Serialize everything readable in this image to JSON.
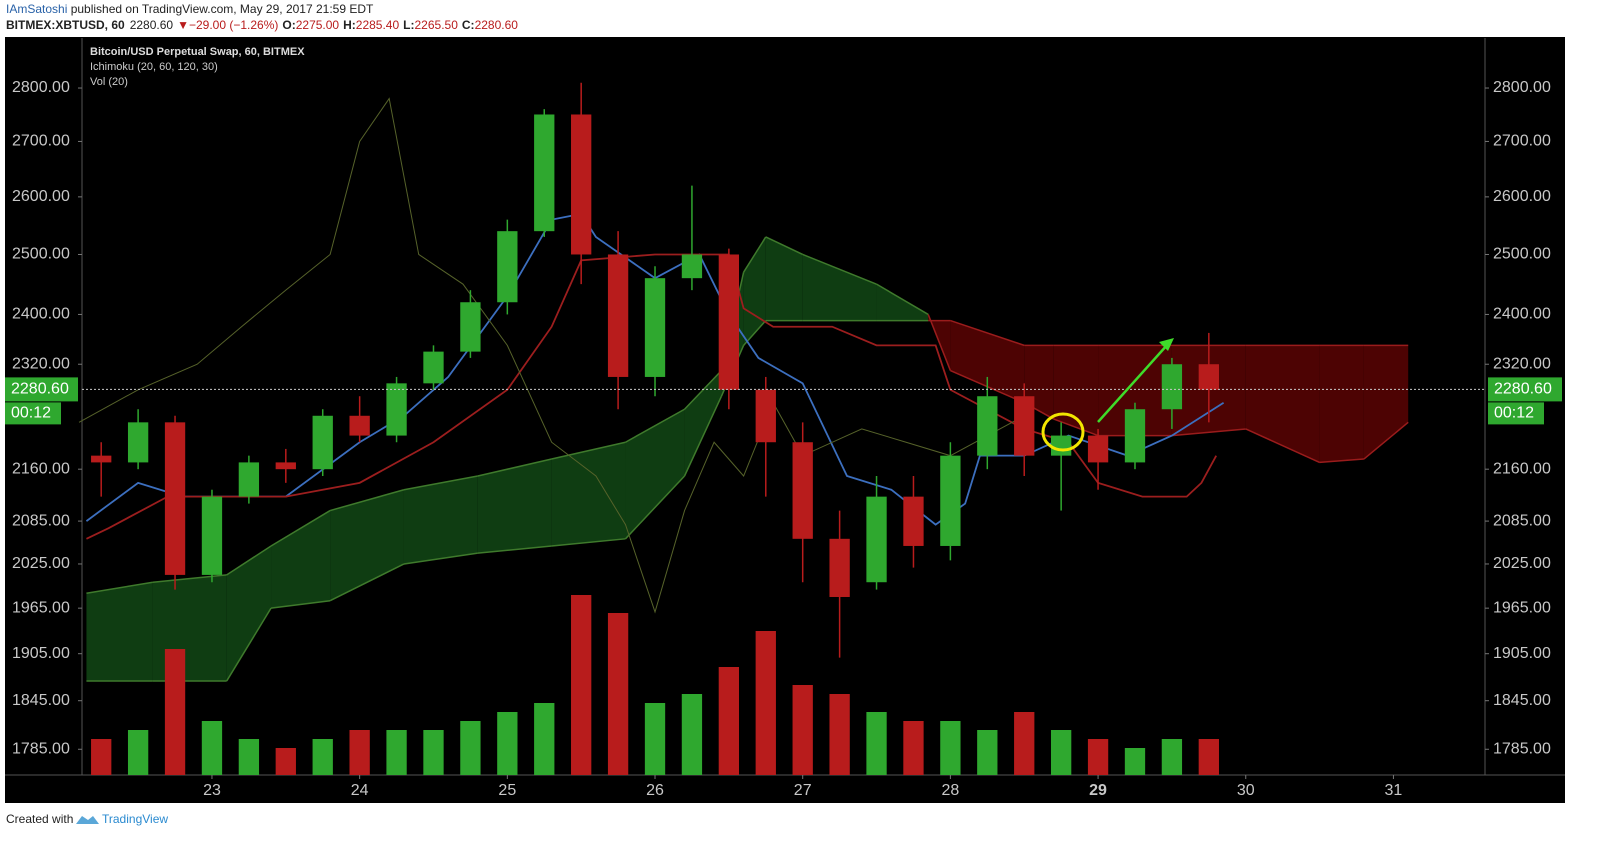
{
  "header": {
    "author": "IAmSatoshi",
    "published": "published on TradingView.com, May 29, 2017 21:59 EDT",
    "symbol": "BITMEX:XBTUSD, 60",
    "price": "2280.60",
    "arrow": "▼",
    "change": "−29.00 (−1.26%)",
    "o_label": "O:",
    "o": "2275.00",
    "h_label": "H:",
    "h": "2285.40",
    "l_label": "L:",
    "l": "2265.50",
    "c_label": "C:",
    "c": "2280.60"
  },
  "footer": {
    "created": "Created with",
    "brand": "TradingView"
  },
  "chart_data": {
    "type": "candlestick",
    "title": "Bitcoin/USD Perpetual Swap, 60, BITMEX",
    "indicators": [
      "Ichimoku (20, 60, 120, 30)",
      "Vol (20)"
    ],
    "x": [
      22.25,
      22.5,
      22.75,
      23.0,
      23.25,
      23.5,
      23.75,
      24.0,
      24.25,
      24.5,
      24.75,
      25.0,
      25.25,
      25.5,
      25.75,
      26.0,
      26.25,
      26.5,
      26.75,
      27.0,
      27.25,
      27.5,
      27.75,
      28.0,
      28.25,
      28.5,
      28.75,
      29.0,
      29.25,
      29.5,
      29.75
    ],
    "open": [
      2180,
      2170,
      2230,
      2010,
      2120,
      2170,
      2160,
      2240,
      2210,
      2290,
      2340,
      2420,
      2540,
      2750,
      2500,
      2300,
      2460,
      2500,
      2280,
      2200,
      2060,
      2000,
      2120,
      2050,
      2180,
      2270,
      2180,
      2210,
      2170,
      2250,
      2320
    ],
    "high": [
      2200,
      2250,
      2240,
      2130,
      2180,
      2190,
      2250,
      2270,
      2300,
      2350,
      2440,
      2560,
      2760,
      2810,
      2540,
      2480,
      2620,
      2510,
      2300,
      2230,
      2100,
      2150,
      2150,
      2200,
      2300,
      2290,
      2230,
      2220,
      2260,
      2330,
      2370
    ],
    "low": [
      2120,
      2160,
      1990,
      2000,
      2110,
      2140,
      2150,
      2200,
      2200,
      2280,
      2330,
      2400,
      2530,
      2450,
      2250,
      2270,
      2440,
      2250,
      2120,
      2000,
      1900,
      1990,
      2020,
      2030,
      2160,
      2150,
      2100,
      2130,
      2160,
      2220,
      2230
    ],
    "close": [
      2170,
      2230,
      2010,
      2120,
      2170,
      2160,
      2240,
      2210,
      2290,
      2340,
      2420,
      2540,
      2750,
      2500,
      2300,
      2460,
      2500,
      2280,
      2200,
      2060,
      1980,
      2120,
      2050,
      2180,
      2270,
      2180,
      2210,
      2170,
      2250,
      2320,
      2280
    ],
    "volume": [
      20,
      25,
      70,
      30,
      20,
      15,
      20,
      25,
      25,
      25,
      30,
      35,
      40,
      100,
      90,
      40,
      45,
      60,
      80,
      50,
      45,
      35,
      30,
      30,
      25,
      35,
      25,
      20,
      15,
      20,
      20
    ],
    "up_color": "#2fa82f",
    "down_color": "#b81c1c",
    "cloud": {
      "x": [
        22.15,
        22.6,
        23.1,
        23.4,
        23.8,
        24.3,
        24.8,
        25.3,
        25.8,
        26.2,
        26.45,
        26.6,
        26.75,
        27.0,
        27.5,
        27.85,
        28.0,
        28.5,
        28.7,
        29.0,
        29.5,
        30.0,
        30.5,
        30.8,
        31.1
      ],
      "span_a": [
        1985,
        2000,
        2010,
        2050,
        2100,
        2130,
        2150,
        2175,
        2200,
        2250,
        2310,
        2470,
        2530,
        2500,
        2450,
        2400,
        2310,
        2260,
        2235,
        2210,
        2210,
        2220,
        2170,
        2175,
        2230
      ],
      "span_b": [
        1870,
        1870,
        1870,
        1965,
        1975,
        2025,
        2040,
        2050,
        2060,
        2150,
        2270,
        2350,
        2390,
        2390,
        2390,
        2390,
        2390,
        2350,
        2350,
        2350,
        2350,
        2350,
        2350,
        2350,
        2350
      ],
      "up_color": "#0f3d12",
      "up_edge": "#3f7a2c",
      "down_color": "#4d0303",
      "down_edge": "#9a1c1c"
    },
    "series": [
      {
        "color": "#3c6fbf",
        "x": [
          22.15,
          22.5,
          22.8,
          23.0,
          23.5,
          24.0,
          24.3,
          24.6,
          25.0,
          25.3,
          25.5,
          25.6,
          26.0,
          26.3,
          26.5,
          26.7,
          27.0,
          27.3,
          27.6,
          27.9,
          28.1,
          28.2,
          28.5,
          28.8,
          29.2,
          29.5,
          29.85
        ],
        "values": [
          2085,
          2140,
          2120,
          2120,
          2120,
          2200,
          2240,
          2300,
          2430,
          2560,
          2570,
          2530,
          2460,
          2500,
          2400,
          2330,
          2290,
          2150,
          2130,
          2080,
          2110,
          2180,
          2180,
          2210,
          2180,
          2210,
          2260
        ]
      },
      {
        "color": "#9c1e1e",
        "x": [
          22.15,
          22.3,
          22.7,
          23.5,
          24.0,
          24.5,
          25.0,
          25.3,
          25.5,
          26.0,
          26.5,
          26.6,
          26.8,
          27.2,
          27.5,
          27.9,
          28.0,
          28.5,
          28.8,
          29.0,
          29.3,
          29.6,
          29.7,
          29.8
        ],
        "values": [
          2060,
          2075,
          2120,
          2120,
          2140,
          2200,
          2280,
          2380,
          2490,
          2500,
          2500,
          2410,
          2380,
          2380,
          2350,
          2350,
          2280,
          2220,
          2200,
          2140,
          2120,
          2120,
          2140,
          2180
        ]
      },
      {
        "color": "#56622a",
        "x": [
          22.1,
          22.5,
          22.9,
          23.2,
          23.5,
          23.8,
          24.0,
          24.2,
          24.4,
          24.7,
          25.0,
          25.3,
          25.6,
          25.8,
          26.0,
          26.2,
          26.4,
          26.6,
          26.8,
          27.0,
          27.4,
          27.7,
          28.0,
          28.5
        ],
        "values": [
          2230,
          2280,
          2320,
          2380,
          2440,
          2500,
          2700,
          2780,
          2500,
          2450,
          2350,
          2200,
          2150,
          2080,
          1960,
          2100,
          2200,
          2150,
          2260,
          2180,
          2220,
          2200,
          2180,
          2240
        ]
      }
    ],
    "xlim": [
      22.12,
      31.62
    ],
    "ylim": [
      1754,
      2897
    ],
    "log_y": true,
    "xticks": [
      23,
      24,
      25,
      26,
      27,
      28,
      29,
      30,
      31
    ],
    "highlight_xtick": 29,
    "yticks": [
      {
        "value": 1785,
        "label": "1785.00"
      },
      {
        "value": 1845,
        "label": "1845.00"
      },
      {
        "value": 1905,
        "label": "1905.00"
      },
      {
        "value": 1965,
        "label": "1965.00"
      },
      {
        "value": 2025,
        "label": "2025.00"
      },
      {
        "value": 2085,
        "label": "2085.00"
      },
      {
        "value": 2160,
        "label": "2160.00"
      },
      {
        "value": 2320,
        "label": "2320.00"
      },
      {
        "value": 2400,
        "label": "2400.00"
      },
      {
        "value": 2500,
        "label": "2500.00"
      },
      {
        "value": 2600,
        "label": "2600.00"
      },
      {
        "value": 2700,
        "label": "2700.00"
      },
      {
        "value": 2800,
        "label": "2800.00"
      }
    ],
    "last_price": {
      "value": 2280.6,
      "label": "2280.60"
    },
    "countdown": "00:12",
    "label_color": "#2fa82f"
  }
}
